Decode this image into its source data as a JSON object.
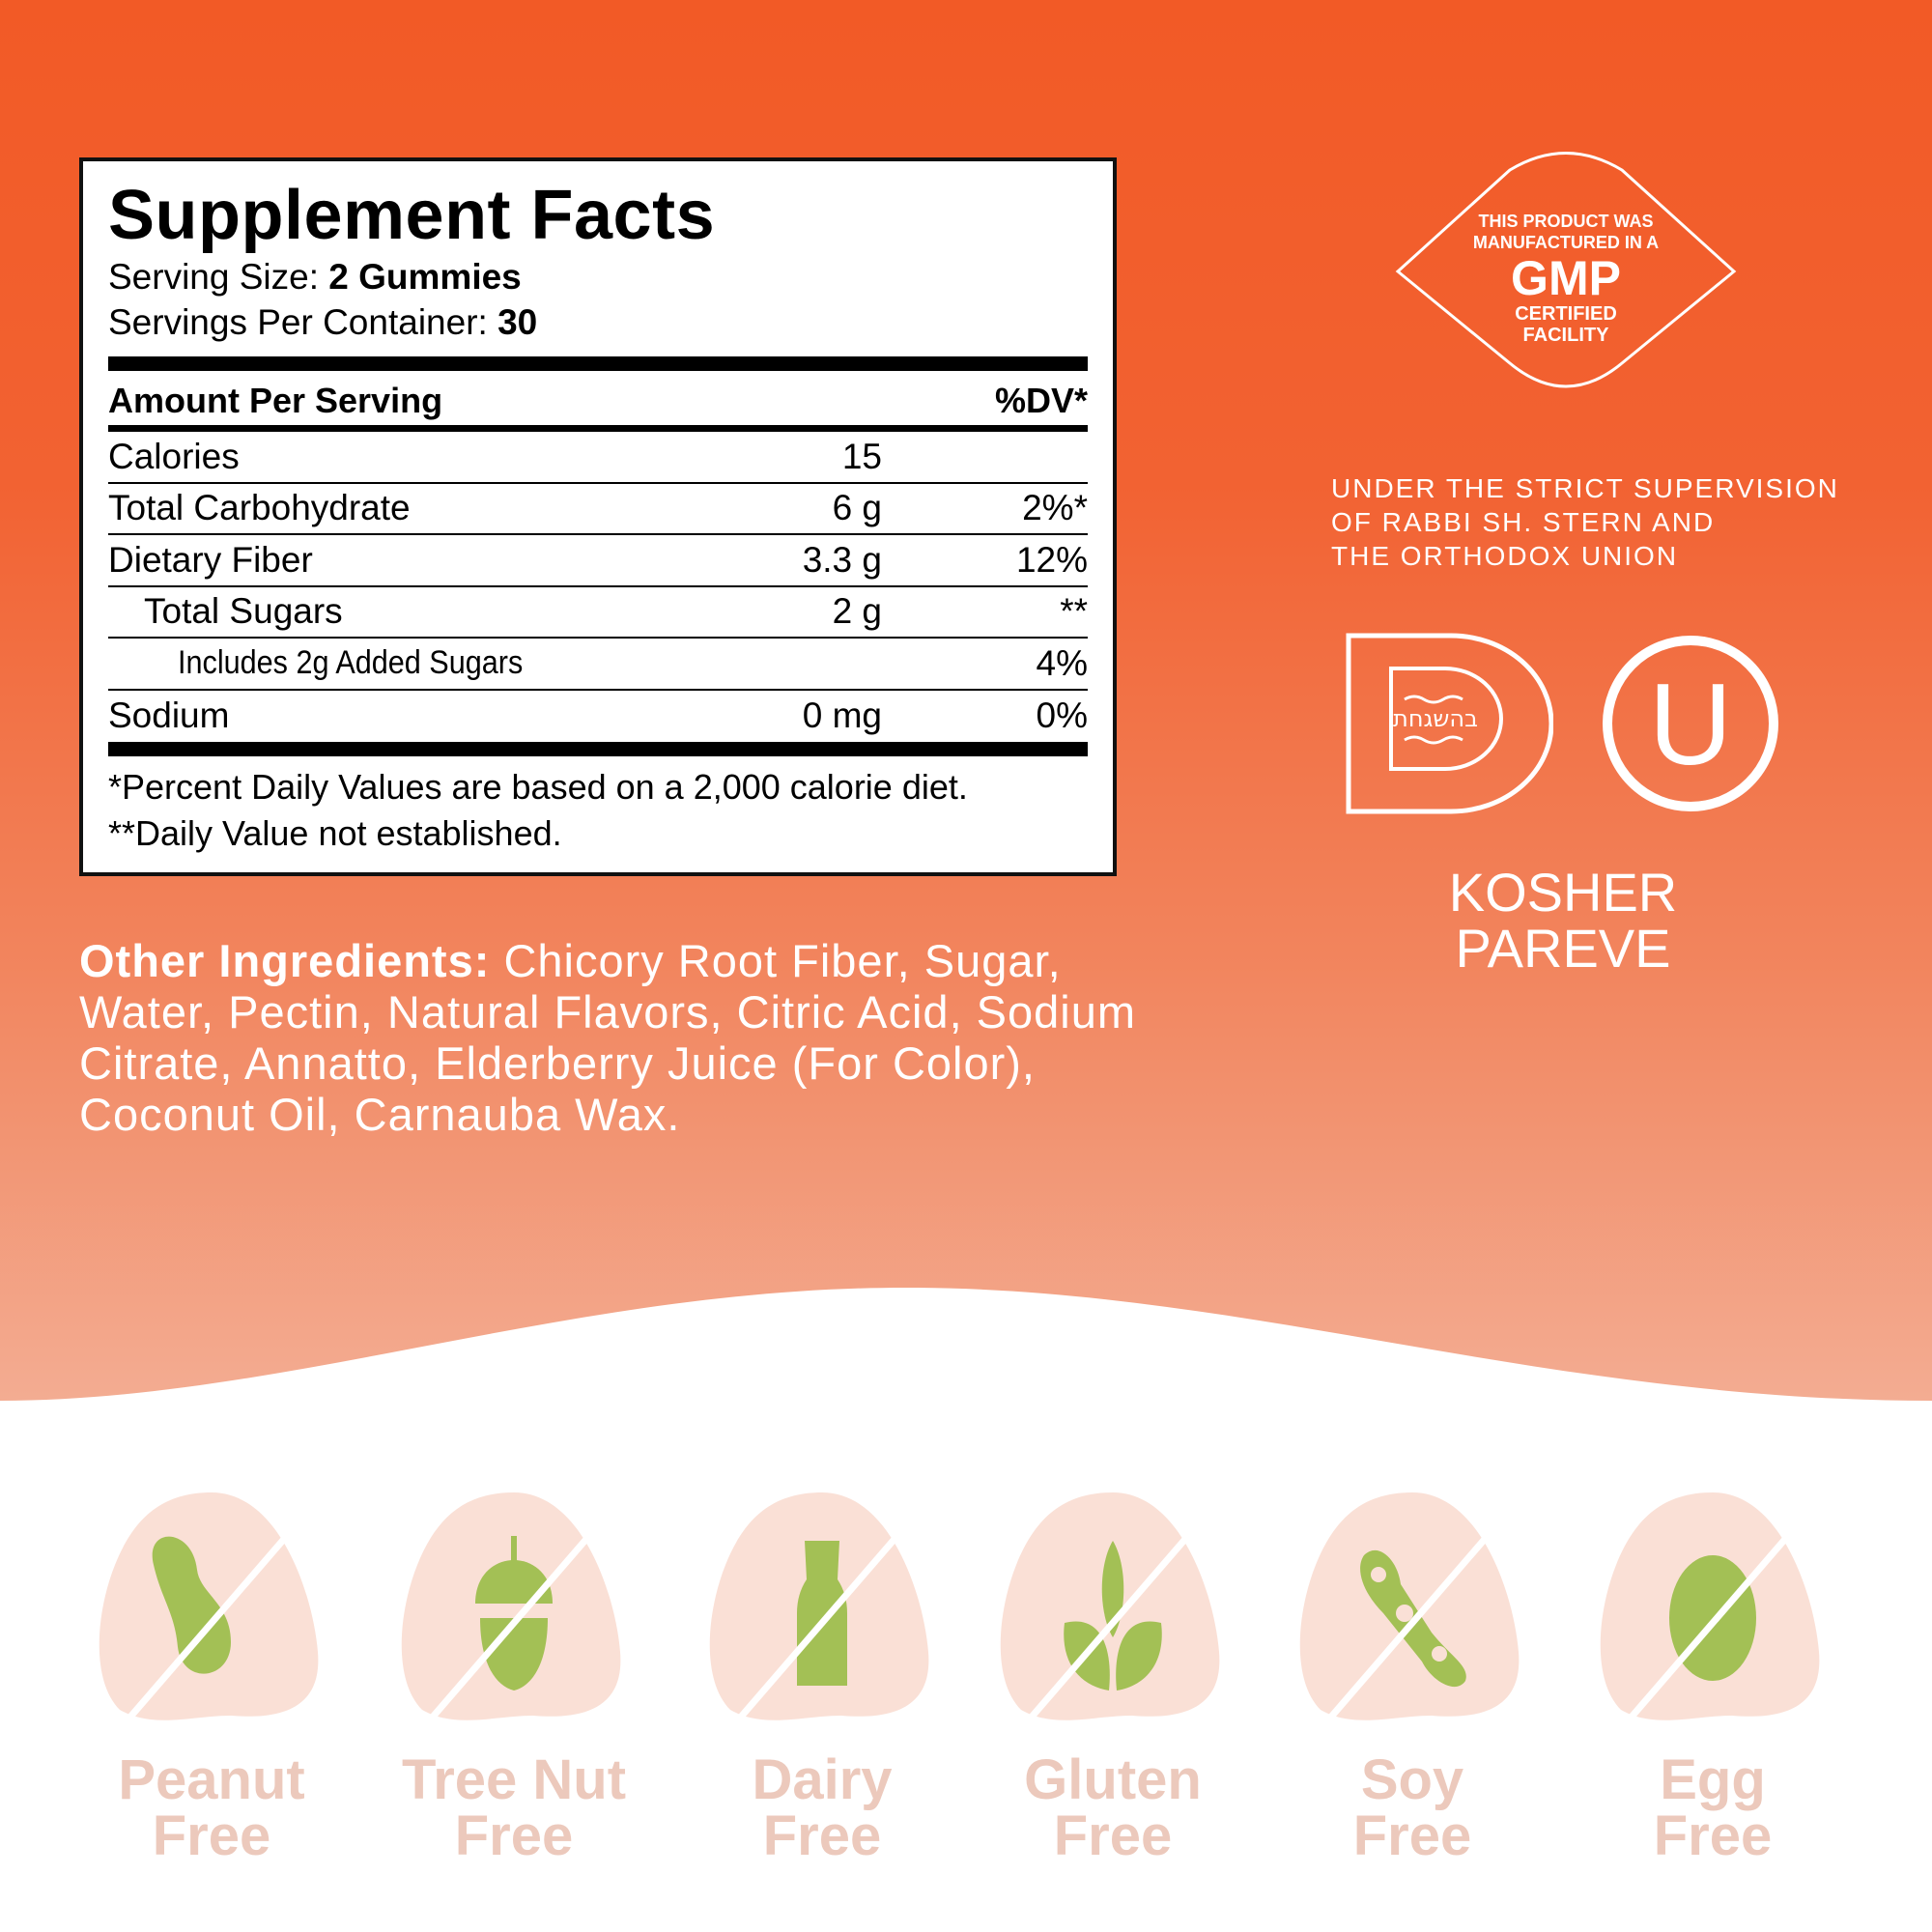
{
  "supplement_facts": {
    "title": "Supplement Facts",
    "serving_size_label": "Serving Size:",
    "serving_size_value": "2 Gummies",
    "servings_label": "Servings Per Container:",
    "servings_value": "30",
    "amount_header": "Amount Per Serving",
    "dv_header": "%DV*",
    "rows": [
      {
        "name": "Calories",
        "amount": "15",
        "dv": ""
      },
      {
        "name": "Total Carbohydrate",
        "amount": "6 g",
        "dv": "2%*"
      },
      {
        "name": "Dietary Fiber",
        "amount": "3.3 g",
        "dv": "12%"
      },
      {
        "name": "Total Sugars",
        "amount": "2 g",
        "dv": "**"
      },
      {
        "name": "Includes 2g Added Sugars",
        "amount": "",
        "dv": "4%"
      },
      {
        "name": "Sodium",
        "amount": "0 mg",
        "dv": "0%"
      }
    ],
    "footnote1": "*Percent Daily Values are based on a 2,000 calorie diet.",
    "footnote2": "**Daily Value not established."
  },
  "ingredients": {
    "label": "Other Ingredients:",
    "text": "Chicory Root Fiber, Sugar, Water, Pectin, Natural Flavors, Citric Acid, Sodium Citrate, Annatto, Elderberry Juice (For Color), Coconut Oil, Carnauba Wax."
  },
  "gmp": {
    "line1": "THIS PRODUCT WAS",
    "line2": "MANUFACTURED IN A",
    "big": "GMP",
    "line3": "CERTIFIED",
    "line4": "FACILITY"
  },
  "supervision": [
    "UNDER THE STRICT SUPERVISION",
    "OF RABBI SH. STERN AND",
    "THE ORTHODOX UNION"
  ],
  "kosher": {
    "line1": "KOSHER",
    "line2": "PAREVE",
    "ou_letter": "U",
    "d_logo_text": "בהשגחת"
  },
  "allergens": [
    {
      "icon": "peanut-icon",
      "line1": "Peanut",
      "line2": "Free"
    },
    {
      "icon": "acorn-icon",
      "line1": "Tree Nut",
      "line2": "Free"
    },
    {
      "icon": "milk-bottle-icon",
      "line1": "Dairy",
      "line2": "Free"
    },
    {
      "icon": "wheat-leaf-icon",
      "line1": "Gluten",
      "line2": "Free"
    },
    {
      "icon": "soybean-icon",
      "line1": "Soy",
      "line2": "Free"
    },
    {
      "icon": "egg-icon",
      "line1": "Egg",
      "line2": "Free"
    }
  ],
  "colors": {
    "background_top": "#f25a26",
    "background_bottom": "#f3ad93",
    "allergen_blob": "#fae0d6",
    "allergen_icon": "#a3c055",
    "allergen_label": "#ecc9bc"
  }
}
